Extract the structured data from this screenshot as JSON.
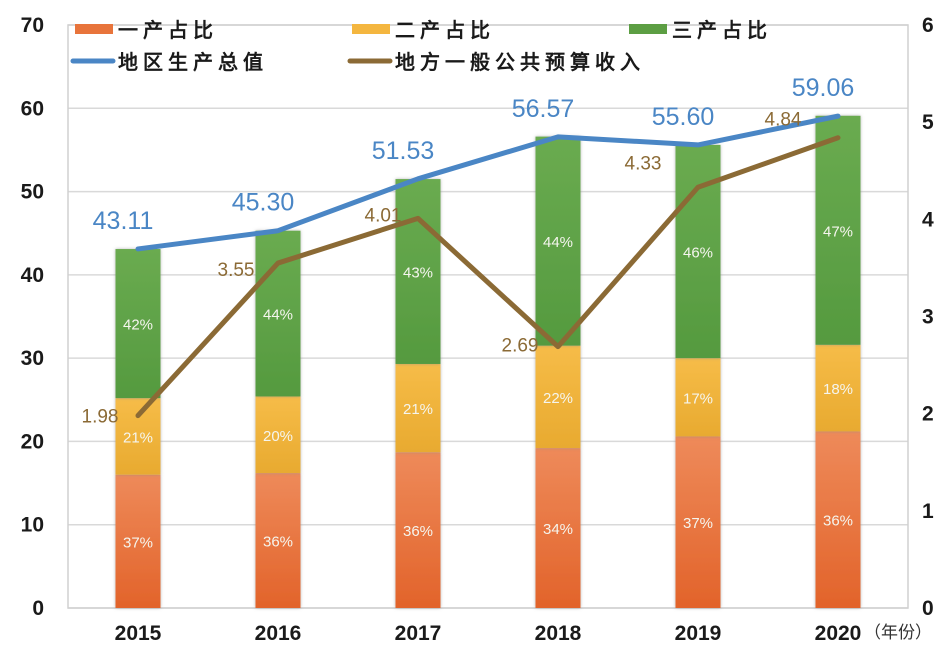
{
  "chart_data": {
    "type": "bar",
    "subtype": "stacked-bar-with-dual-axis-lines",
    "title": "",
    "categories": [
      "2015",
      "2016",
      "2017",
      "2018",
      "2019",
      "2020"
    ],
    "x_unit_label": "（年份）",
    "left_axis": {
      "min": 0,
      "max": 70,
      "ticks": [
        "0",
        "10",
        "20",
        "30",
        "40",
        "50",
        "60",
        "70"
      ]
    },
    "right_axis": {
      "min": 0,
      "max": 6,
      "ticks": [
        "0",
        "1",
        "2",
        "3",
        "4",
        "5",
        "6"
      ]
    },
    "grid": true,
    "legend": {
      "placement": "top",
      "items": [
        {
          "label": "一产占比",
          "type": "bar",
          "color": "#e8743b"
        },
        {
          "label": "二产占比",
          "type": "bar",
          "color": "#f4b63f"
        },
        {
          "label": "三产占比",
          "type": "bar",
          "color": "#5c9e43"
        },
        {
          "label": "地区生产总值",
          "type": "line",
          "color": "#4a86c5"
        },
        {
          "label": "地方一般公共预算收入",
          "type": "line",
          "color": "#8b6a35"
        }
      ]
    },
    "stacked_series": [
      {
        "name": "一产占比",
        "color": "#e8743b",
        "percent_labels": [
          "37%",
          "36%",
          "36%",
          "34%",
          "37%",
          "36%"
        ],
        "values": [
          16.0,
          16.2,
          18.7,
          19.2,
          20.6,
          21.2
        ]
      },
      {
        "name": "二产占比",
        "color": "#f4b63f",
        "percent_labels": [
          "21%",
          "20%",
          "21%",
          "22%",
          "17%",
          "18%"
        ],
        "values": [
          9.2,
          9.2,
          10.6,
          12.3,
          9.4,
          10.4
        ]
      },
      {
        "name": "三产占比",
        "color": "#5c9e43",
        "percent_labels": [
          "42%",
          "44%",
          "43%",
          "44%",
          "46%",
          "47%"
        ],
        "values": [
          17.9,
          19.9,
          22.2,
          25.1,
          25.6,
          27.5
        ]
      }
    ],
    "line_series": [
      {
        "name": "地区生产总值",
        "axis": "left",
        "color": "#4a86c5",
        "values": [
          43.11,
          45.3,
          51.53,
          56.57,
          55.6,
          59.06
        ],
        "labels": [
          "43.11",
          "45.30",
          "51.53",
          "56.57",
          "55.60",
          "59.06"
        ]
      },
      {
        "name": "地方一般公共预算收入",
        "axis": "right",
        "color": "#8b6a35",
        "values": [
          1.98,
          3.55,
          4.01,
          2.69,
          4.33,
          4.84
        ],
        "labels": [
          "1.98",
          "3.55",
          "4.01",
          "2.69",
          "4.33",
          "4.84"
        ]
      }
    ]
  }
}
